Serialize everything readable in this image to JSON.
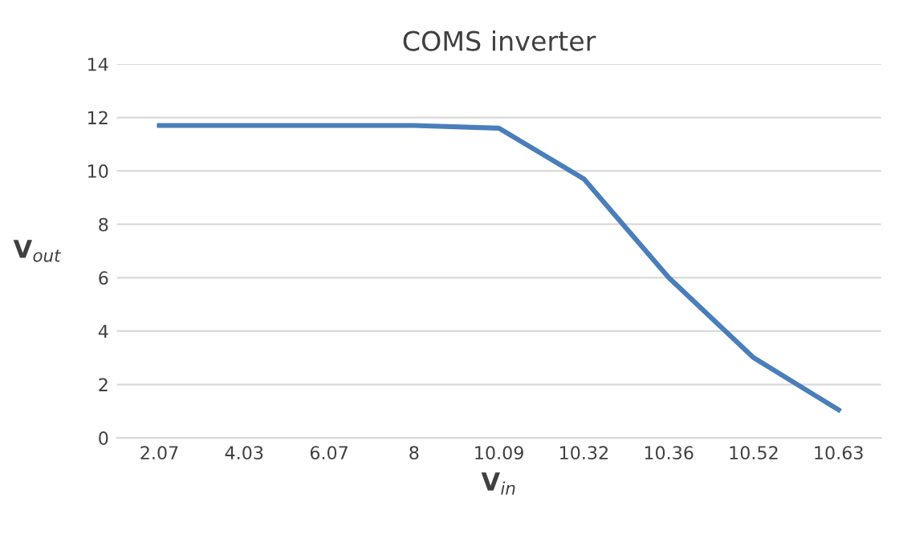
{
  "chart_data": {
    "type": "line",
    "title": "COMS inverter",
    "xlabel": "V$_{in}$",
    "ylabel": "V$_{out}$",
    "categories": [
      "2.07",
      "4.03",
      "6.07",
      "8",
      "10.09",
      "10.32",
      "10.36",
      "10.52",
      "10.63"
    ],
    "series": [
      {
        "color": "#4a7ebb",
        "values": [
          11.7,
          11.7,
          11.7,
          11.7,
          11.6,
          9.7,
          6.0,
          3.0,
          1.05
        ]
      }
    ],
    "ylim": [
      0,
      14
    ],
    "yticks": [
      0,
      2,
      4,
      6,
      8,
      10,
      12,
      14
    ],
    "grid": "y",
    "marker": "none",
    "line_style": "solid",
    "legend": false
  }
}
